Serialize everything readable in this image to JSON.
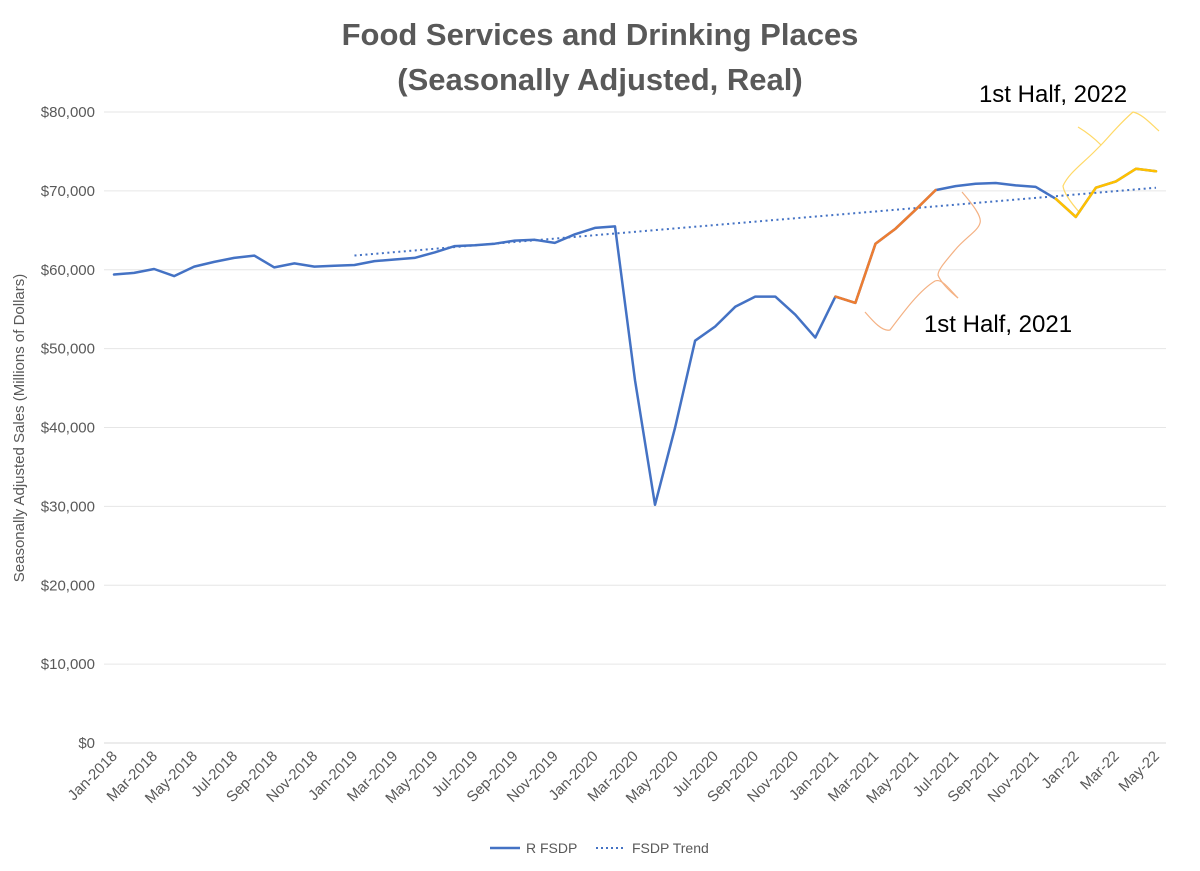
{
  "chart_data": {
    "type": "line",
    "title": "Food Services and Drinking Places",
    "subtitle": "(Seasonally Adjusted, Real)",
    "ylabel": "Seasonally Adjusted Sales (Millions of Dollars)",
    "xlabel": "",
    "ylim": [
      0,
      80000
    ],
    "yticks": [
      0,
      10000,
      20000,
      30000,
      40000,
      50000,
      60000,
      70000,
      80000
    ],
    "ytick_labels": [
      "$0",
      "$10,000",
      "$20,000",
      "$30,000",
      "$40,000",
      "$50,000",
      "$60,000",
      "$70,000",
      "$80,000"
    ],
    "grid": true,
    "legend_position": "bottom",
    "categories": [
      "Jan-2018",
      "Feb-2018",
      "Mar-2018",
      "Apr-2018",
      "May-2018",
      "Jun-2018",
      "Jul-2018",
      "Aug-2018",
      "Sep-2018",
      "Oct-2018",
      "Nov-2018",
      "Dec-2018",
      "Jan-2019",
      "Feb-2019",
      "Mar-2019",
      "Apr-2019",
      "May-2019",
      "Jun-2019",
      "Jul-2019",
      "Aug-2019",
      "Sep-2019",
      "Oct-2019",
      "Nov-2019",
      "Dec-2019",
      "Jan-2020",
      "Feb-2020",
      "Mar-2020",
      "Apr-2020",
      "May-2020",
      "Jun-2020",
      "Jul-2020",
      "Aug-2020",
      "Sep-2020",
      "Oct-2020",
      "Nov-2020",
      "Dec-2020",
      "Jan-2021",
      "Feb-2021",
      "Mar-2021",
      "Apr-2021",
      "May-2021",
      "Jun-2021",
      "Jul-2021",
      "Aug-2021",
      "Sep-2021",
      "Oct-2021",
      "Nov-2021",
      "Dec-2021",
      "Jan-22",
      "Feb-22",
      "Mar-22",
      "Apr-22",
      "May-22"
    ],
    "xtick_labels": [
      "Jan-2018",
      "Mar-2018",
      "May-2018",
      "Jul-2018",
      "Sep-2018",
      "Nov-2018",
      "Jan-2019",
      "Mar-2019",
      "May-2019",
      "Jul-2019",
      "Sep-2019",
      "Nov-2019",
      "Jan-2020",
      "Mar-2020",
      "May-2020",
      "Jul-2020",
      "Sep-2020",
      "Nov-2020",
      "Jan-2021",
      "Mar-2021",
      "May-2021",
      "Jul-2021",
      "Sep-2021",
      "Nov-2021",
      "Jan-22",
      "Mar-22",
      "May-22"
    ],
    "series": [
      {
        "name": "R FSDP",
        "color": "#4472C4",
        "values": [
          59400,
          59600,
          60100,
          59200,
          60400,
          61000,
          61500,
          61800,
          60300,
          60800,
          60400,
          60500,
          60600,
          61100,
          61300,
          61500,
          62200,
          63000,
          63100,
          63300,
          63700,
          63800,
          63400,
          64500,
          65300,
          65500,
          46000,
          30200,
          40000,
          51000,
          52800,
          55300,
          56600,
          56600,
          54300,
          51400,
          56600,
          55800,
          63300,
          65200,
          67600,
          70100,
          70600,
          70900,
          71000,
          70700,
          70500,
          69000,
          66700,
          70400,
          71200,
          72800,
          72500
        ]
      },
      {
        "name": "FSDP Trend",
        "color": "#4472C4",
        "style": "dotted",
        "start_category": "Jan-2019",
        "end_category": "May-22",
        "start_value": 61800,
        "end_value": 70400
      }
    ],
    "highlights": [
      {
        "label": "1st Half, 2021",
        "color": "#ED7D31",
        "start_category": "Jan-2021",
        "end_category": "Jun-2021"
      },
      {
        "label": "1st Half, 2022",
        "color": "#FFC000",
        "start_category": "Dec-2021",
        "end_category": "May-22"
      }
    ]
  }
}
